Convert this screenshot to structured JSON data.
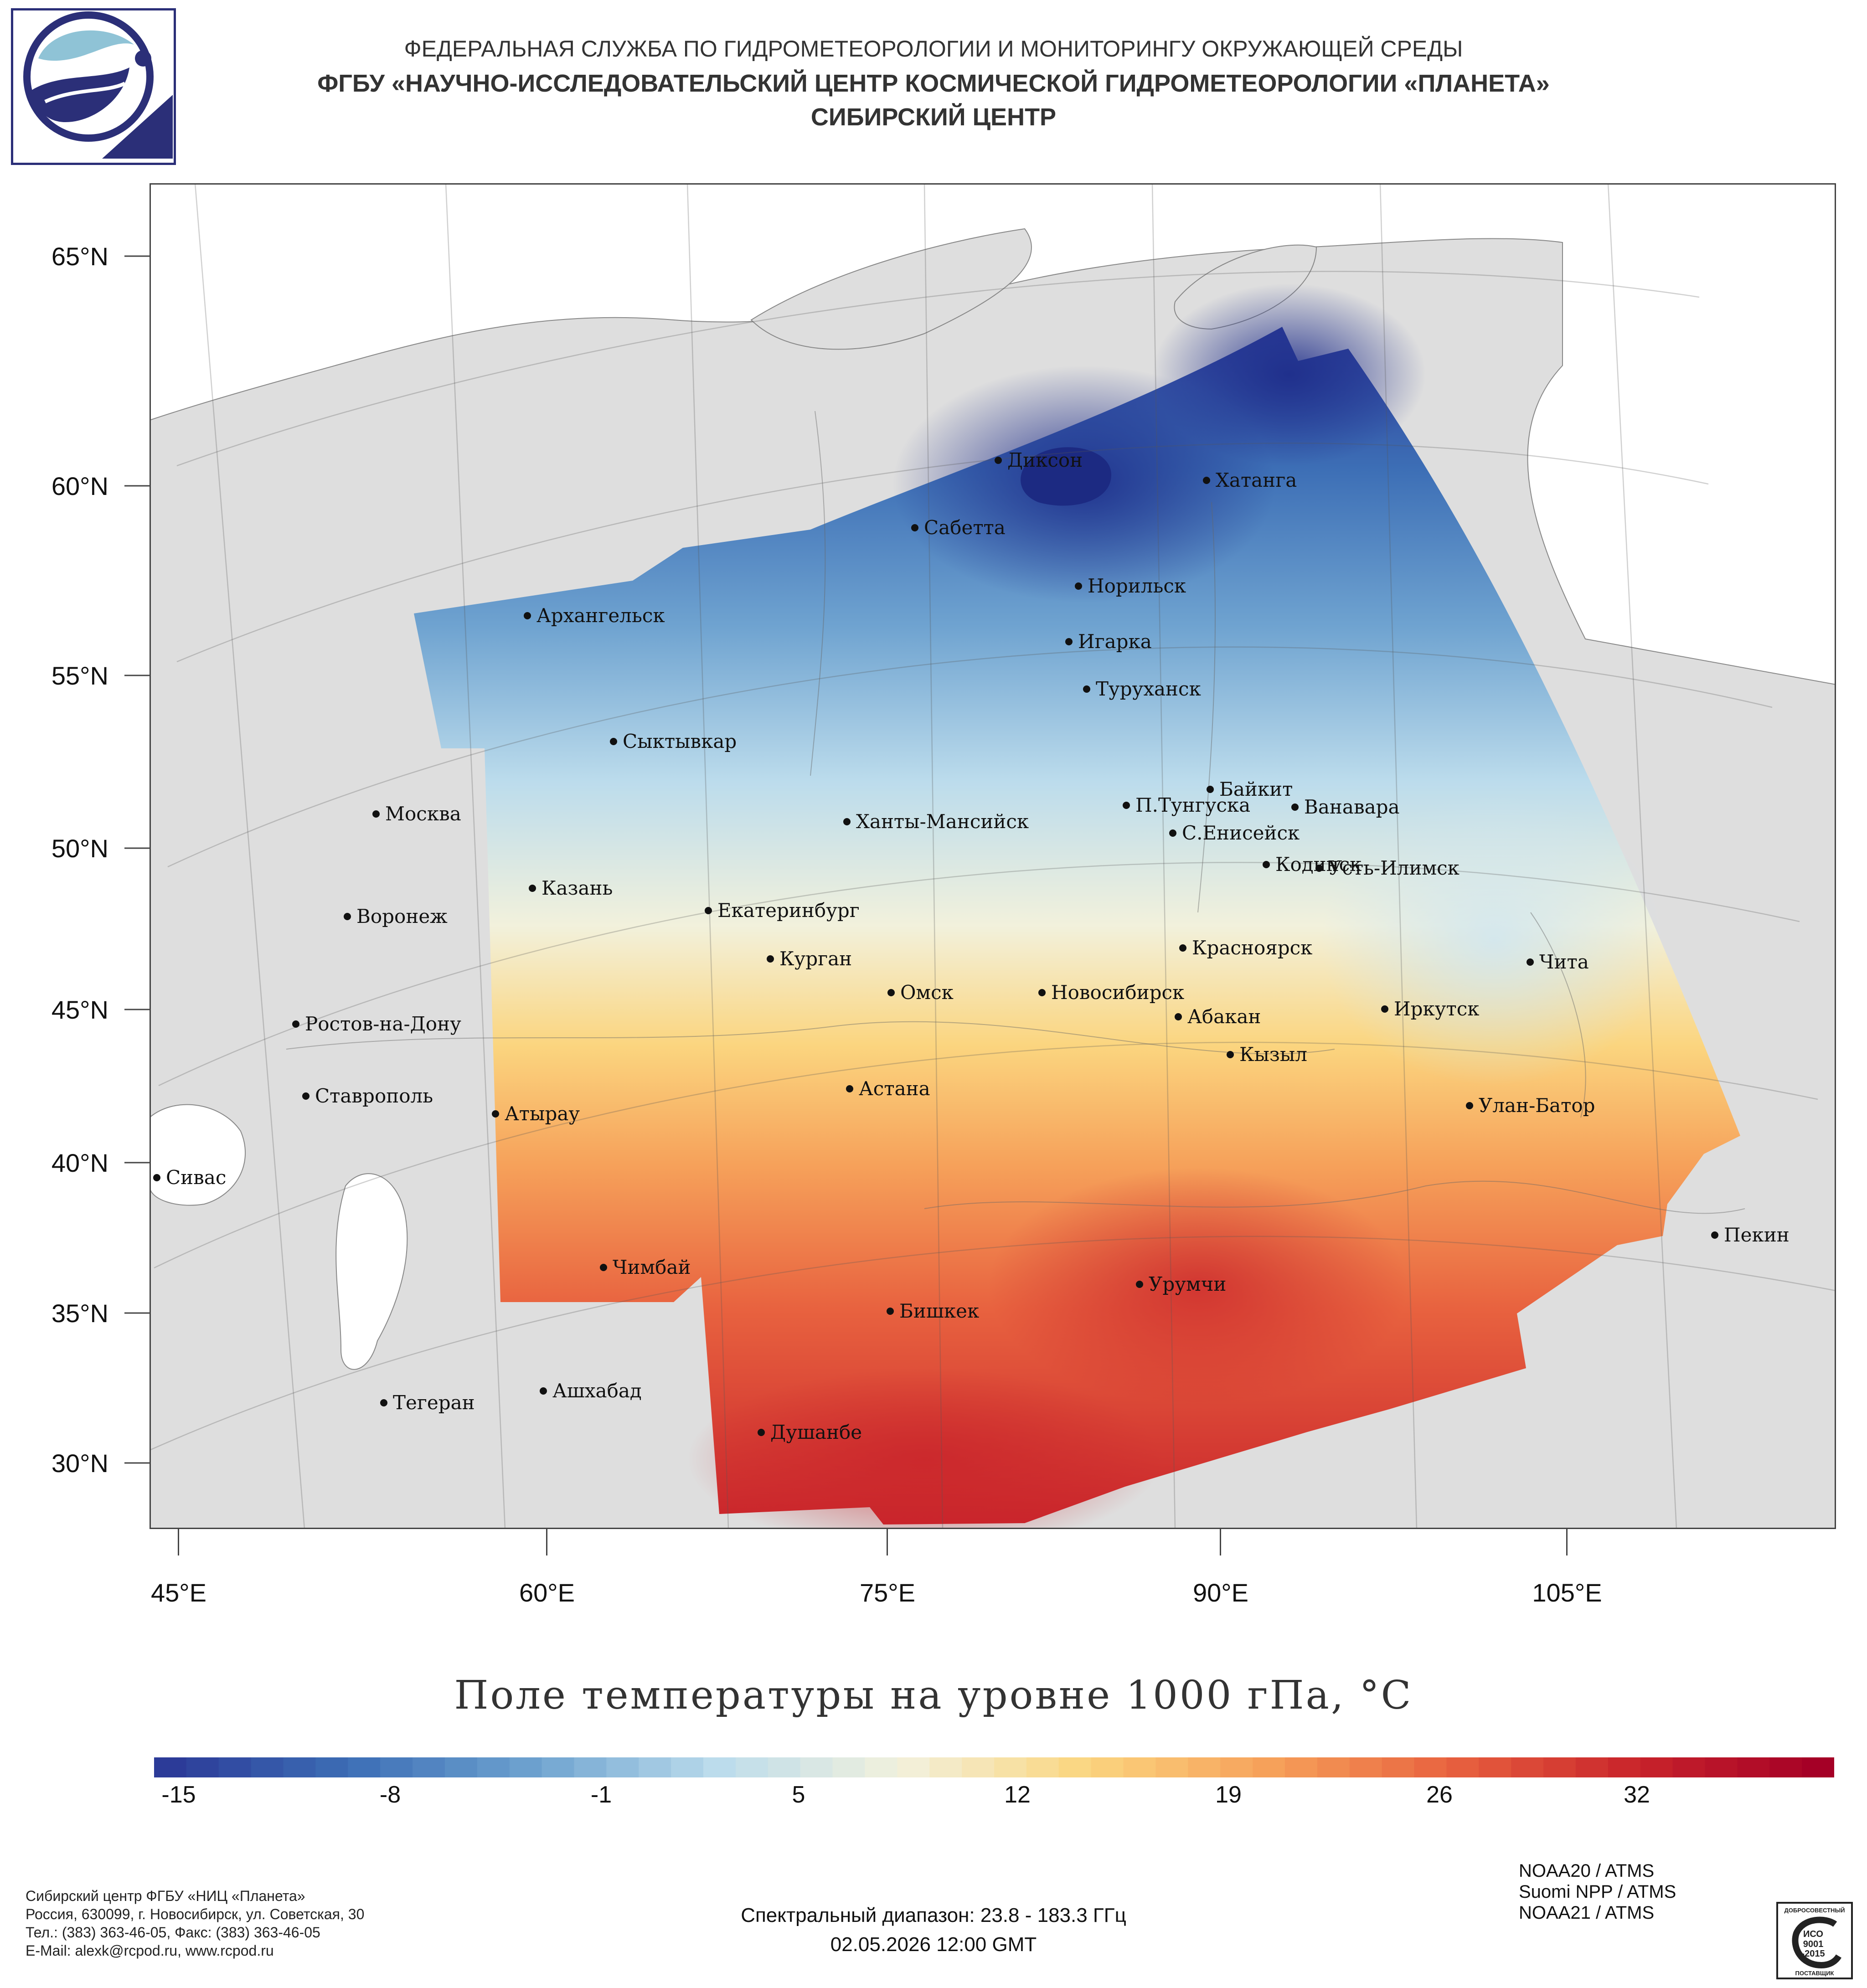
{
  "header": {
    "agency": "ФЕДЕРАЛЬНАЯ СЛУЖБА ПО ГИДРОМЕТЕОРОЛОГИИ И МОНИТОРИНГУ ОКРУЖАЮЩЕЙ СРЕДЫ",
    "center": "ФГБУ «НАУЧНО-ИССЛЕДОВАТЕЛЬСКИЙ ЦЕНТР КОСМИЧЕСКОЙ ГИДРОМЕТЕОРОЛОГИИ «ПЛАНЕТА»",
    "branch": "СИБИРСКИЙ ЦЕНТР"
  },
  "map": {
    "lat_labels": [
      "65°N",
      "60°N",
      "55°N",
      "50°N",
      "45°N",
      "40°N",
      "35°N",
      "30°N"
    ],
    "lon_labels": [
      "45°E",
      "60°E",
      "75°E",
      "90°E",
      "105°E"
    ],
    "cities": [
      {
        "name": "Диксон"
      },
      {
        "name": "Хатанга"
      },
      {
        "name": "Сабетта"
      },
      {
        "name": "Норильск"
      },
      {
        "name": "Архангельск"
      },
      {
        "name": "Игарка"
      },
      {
        "name": "Туруханск"
      },
      {
        "name": "Сыктывкар"
      },
      {
        "name": "Байкит"
      },
      {
        "name": "П.Тунгуска"
      },
      {
        "name": "Ванавара"
      },
      {
        "name": "Москва"
      },
      {
        "name": "Ханты-Мансийск"
      },
      {
        "name": "С.Енисейск"
      },
      {
        "name": "Кодинск"
      },
      {
        "name": "Усть-Илимск"
      },
      {
        "name": "Казань"
      },
      {
        "name": "Екатеринбург"
      },
      {
        "name": "Воронеж"
      },
      {
        "name": "Красноярск"
      },
      {
        "name": "Курган"
      },
      {
        "name": "Чита"
      },
      {
        "name": "Омск"
      },
      {
        "name": "Новосибирск"
      },
      {
        "name": "Иркутск"
      },
      {
        "name": "Абакан"
      },
      {
        "name": "Ростов-на-Дону"
      },
      {
        "name": "Кызыл"
      },
      {
        "name": "Ставрополь"
      },
      {
        "name": "Астана"
      },
      {
        "name": "Улан-Батор"
      },
      {
        "name": "Атырау"
      },
      {
        "name": "Сивас"
      },
      {
        "name": "Пекин"
      },
      {
        "name": "Чимбай"
      },
      {
        "name": "Урумчи"
      },
      {
        "name": "Бишкек"
      },
      {
        "name": "Ашхабад"
      },
      {
        "name": "Тегеран"
      },
      {
        "name": "Душанбе"
      }
    ]
  },
  "title": "Поле температуры на уровне 1000 гПа, °C",
  "colorbar": {
    "ticks": [
      "-15",
      "-8",
      "-1",
      "5",
      "12",
      "19",
      "26",
      "32"
    ],
    "colors": [
      "#2c3b98",
      "#3d6fb6",
      "#6fa3d0",
      "#bcdcec",
      "#f2f1dc",
      "#fbd57f",
      "#f6a15a",
      "#e8623f",
      "#c9242b",
      "#a50026"
    ]
  },
  "footer": {
    "line1": "Сибирский центр ФГБУ «НИЦ «Планета»",
    "line2": "Россия, 630099, г. Новосибирск, ул. Советская, 30",
    "line3": "Тел.: (383) 363-46-05, Факс: (383) 363-46-05",
    "line4": "E-Mail: alexk@rcpod.ru, www.rcpod.ru"
  },
  "spectral": "Спектральный диапазон: 23.8 - 183.3 ГГц",
  "timestamp": "02.05.2026 12:00 GMT",
  "instruments": [
    "NOAA20 / ATMS",
    "Suomi NPP / ATMS",
    "NOAA21 / ATMS"
  ],
  "badge": {
    "top": "ДОБРОСОВЕСТНЫЙ",
    "mid1": "ИСО",
    "mid2": "9001",
    "mid3": "-2015",
    "bottom": "ПОСТАВЩИК"
  }
}
